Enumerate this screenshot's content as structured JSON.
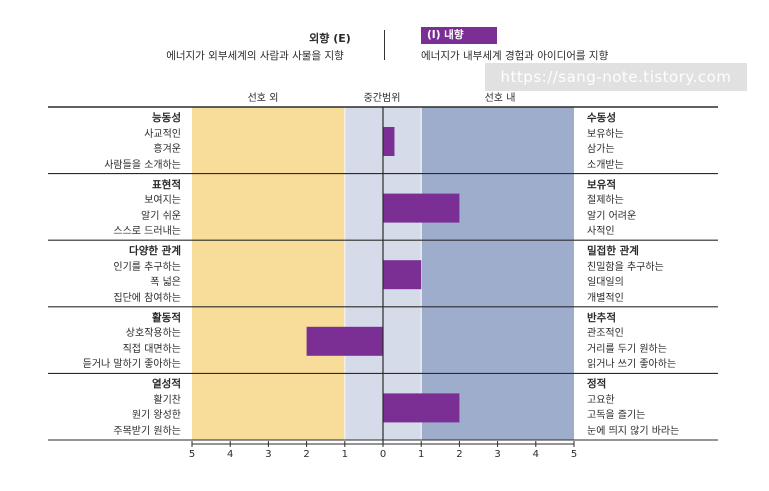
{
  "header": {
    "left_title": "외향 (E)",
    "left_desc": "에너지가 외부세계의 사람과 사물을 지향",
    "right_title": "(I) 내향",
    "right_desc": "에너지가 내부세계 경험과 아이디어를 지향",
    "watermark": "https://sang-note.tistory.com"
  },
  "zones": {
    "left": "선호 외",
    "middle": "중간범위",
    "right": "선호 내"
  },
  "colors": {
    "left_zone": "#f8dd9a",
    "middle_zone": "#d5dbe9",
    "right_zone": "#9fadcd",
    "bar": "#7b2f94",
    "accent": "#7b2f94"
  },
  "rows": [
    {
      "left_title": "능동성",
      "left_items": [
        "사교적인",
        "흥겨운",
        "사람들을 소개하는"
      ],
      "right_title": "수동성",
      "right_items": [
        "보유하는",
        "삼가는",
        "소개받는"
      ]
    },
    {
      "left_title": "표현적",
      "left_items": [
        "보여지는",
        "알기 쉬운",
        "스스로 드러내는"
      ],
      "right_title": "보유적",
      "right_items": [
        "절제하는",
        "알기 어려운",
        "사적인"
      ]
    },
    {
      "left_title": "다양한 관계",
      "left_items": [
        "인기를 추구하는",
        "폭 넓은",
        "집단에 참여하는"
      ],
      "right_title": "밀접한 관계",
      "right_items": [
        "친밀함을 추구하는",
        "일대일의",
        "개별적인"
      ]
    },
    {
      "left_title": "활동적",
      "left_items": [
        "상호작용하는",
        "직접 대면하는",
        "듣거나 말하기 좋아하는"
      ],
      "right_title": "반추적",
      "right_items": [
        "관조적인",
        "거리를 두기 원하는",
        "읽거나 쓰기 좋아하는"
      ]
    },
    {
      "left_title": "열성적",
      "left_items": [
        "활기찬",
        "원기 왕성한",
        "주목받기 원하는"
      ],
      "right_title": "정적",
      "right_items": [
        "고요한",
        "고독을 즐기는",
        "눈에 띄지 않기 바라는"
      ]
    }
  ],
  "chart_data": {
    "type": "bar",
    "orientation": "horizontal-diverging",
    "categories": [
      "능동성 / 수동성",
      "표현적 / 보유적",
      "다양한 관계 / 밀접한 관계",
      "활동적 / 반추적",
      "열성적 / 정적"
    ],
    "values": [
      0.3,
      2,
      1,
      -2,
      2
    ],
    "value_note": "negative = 외향 side (left), positive = 내향 side (right)",
    "xlim": [
      -5,
      5
    ],
    "x_tick_labels": [
      "5",
      "4",
      "3",
      "2",
      "1",
      "0",
      "1",
      "2",
      "3",
      "4",
      "5"
    ],
    "zones": [
      {
        "name": "선호 외",
        "range": [
          -5,
          -1
        ]
      },
      {
        "name": "중간범위",
        "range": [
          -1,
          1
        ]
      },
      {
        "name": "선호 내",
        "range": [
          1,
          5
        ]
      }
    ]
  }
}
